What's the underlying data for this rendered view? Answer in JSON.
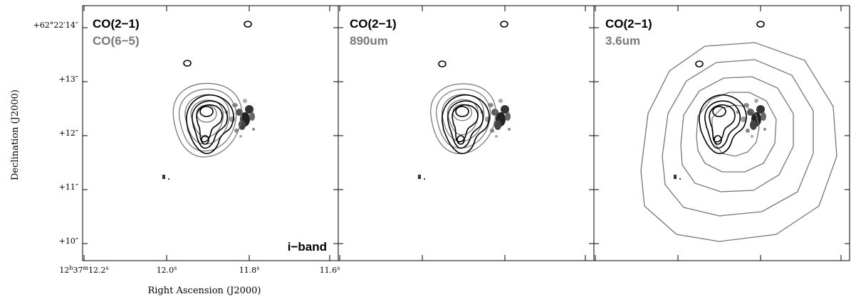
{
  "figure": {
    "ylabel": "Declination (J2000)",
    "xlabel": "Right Ascension (J2000)",
    "y_ticks": [
      {
        "dec": "+62°22′14″",
        "label": "+62°22′14″"
      },
      {
        "dec": "+62°22′13″",
        "label": "+13″"
      },
      {
        "dec": "+62°22′12″",
        "label": "+12″"
      },
      {
        "dec": "+62°22′11″",
        "label": "+11″"
      },
      {
        "dec": "+62°22′10″",
        "label": "+10″"
      }
    ],
    "x_ticks": [
      {
        "ra": "12h37m12.2s",
        "prefix": "12",
        "h": "h",
        "mid": "37",
        "m": "m",
        "sec": "12.2",
        "s": "s"
      },
      {
        "ra": "12.0s",
        "sec": "12.0",
        "s": "s"
      },
      {
        "ra": "11.8s",
        "sec": "11.8",
        "s": "s"
      },
      {
        "ra": "11.6s",
        "sec": "11.6",
        "s": "s"
      }
    ],
    "panels": [
      {
        "label_black": "CO(2−1)",
        "label_gray": "CO(6−5)",
        "band_label": "i−band"
      },
      {
        "label_black": "CO(2−1)",
        "label_gray": "890um",
        "band_label": ""
      },
      {
        "label_black": "CO(2−1)",
        "label_gray": "3.6um",
        "band_label": ""
      }
    ]
  }
}
